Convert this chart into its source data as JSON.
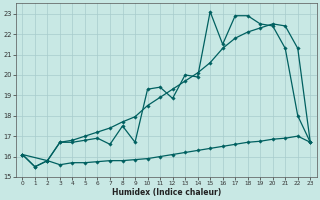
{
  "xlabel": "Humidex (Indice chaleur)",
  "xlim": [
    -0.5,
    23.5
  ],
  "ylim": [
    15,
    23.5
  ],
  "yticks": [
    15,
    16,
    17,
    18,
    19,
    20,
    21,
    22,
    23
  ],
  "xticks": [
    0,
    1,
    2,
    3,
    4,
    5,
    6,
    7,
    8,
    9,
    10,
    11,
    12,
    13,
    14,
    15,
    16,
    17,
    18,
    19,
    20,
    21,
    22,
    23
  ],
  "bg_color": "#c8e8e4",
  "grid_color": "#a8cccc",
  "line_color": "#006060",
  "line1_x": [
    0,
    1,
    2,
    3,
    4,
    5,
    6,
    7,
    8,
    9,
    10,
    11,
    12,
    13,
    14,
    15,
    16,
    17,
    18,
    19,
    20,
    21,
    22,
    23
  ],
  "line1_y": [
    16.1,
    15.5,
    15.8,
    15.6,
    15.7,
    15.7,
    15.75,
    15.8,
    15.8,
    15.85,
    15.9,
    16.0,
    16.1,
    16.2,
    16.3,
    16.4,
    16.5,
    16.6,
    16.7,
    16.75,
    16.85,
    16.9,
    17.0,
    16.7
  ],
  "line2_x": [
    0,
    1,
    2,
    3,
    4,
    5,
    6,
    7,
    8,
    9,
    10,
    11,
    12,
    13,
    14,
    15,
    16,
    17,
    18,
    19,
    20,
    21,
    22,
    23
  ],
  "line2_y": [
    16.1,
    15.5,
    15.8,
    16.7,
    16.7,
    16.8,
    16.9,
    16.6,
    17.5,
    16.7,
    19.3,
    19.4,
    18.85,
    20.0,
    19.9,
    23.1,
    21.5,
    22.9,
    22.9,
    22.5,
    22.4,
    21.3,
    18.0,
    16.7
  ],
  "line3_x": [
    0,
    2,
    3,
    4,
    5,
    6,
    7,
    8,
    9,
    10,
    11,
    12,
    13,
    14,
    15,
    16,
    17,
    18,
    19,
    20,
    21,
    22,
    23
  ],
  "line3_y": [
    16.1,
    15.8,
    16.7,
    16.8,
    17.0,
    17.2,
    17.4,
    17.7,
    17.95,
    18.5,
    18.9,
    19.3,
    19.7,
    20.1,
    20.6,
    21.3,
    21.8,
    22.1,
    22.3,
    22.5,
    22.4,
    21.3,
    16.7
  ]
}
